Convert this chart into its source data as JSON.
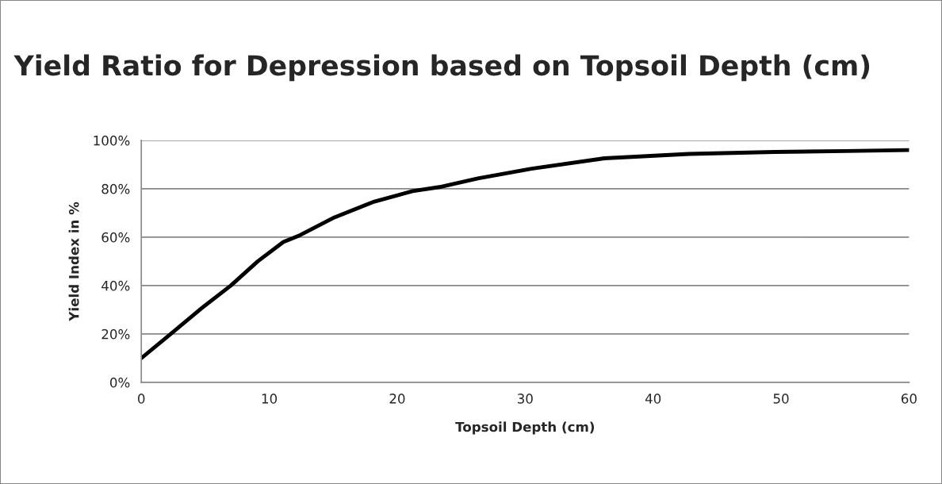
{
  "chart_data": {
    "type": "line",
    "title": "Yield Ratio for Depression based on Topsoil Depth (cm)",
    "xlabel": "Topsoil Depth (cm)",
    "ylabel": "Yield Index in %",
    "series": [
      {
        "color": "#000000",
        "x": [
          0,
          2.3,
          4.7,
          7.0,
          9.1,
          11.1,
          12.4,
          15.1,
          18.1,
          21.2,
          23.3,
          26.3,
          30.5,
          36.2,
          42.8,
          49.5,
          55.0,
          60
        ],
        "values": [
          10,
          20,
          30.6,
          40,
          50,
          58,
          60.8,
          68.2,
          74.5,
          79,
          80.7,
          84.3,
          88.3,
          92.6,
          94.4,
          95.2,
          95.6,
          96
        ]
      }
    ],
    "xlim": [
      0,
      60
    ],
    "xticks": [
      0,
      10,
      20,
      30,
      40,
      50,
      60
    ],
    "ylim": [
      0,
      100
    ],
    "yticks": [
      {
        "value": 0,
        "label": "0%"
      },
      {
        "value": 20,
        "label": "20%"
      },
      {
        "value": 40,
        "label": "40%"
      },
      {
        "value": 60,
        "label": "60%"
      },
      {
        "value": 80,
        "label": "80%"
      },
      {
        "value": 100,
        "label": "100%"
      }
    ],
    "grid": "y",
    "legend": false,
    "marker": "none",
    "line_style": "solid"
  }
}
